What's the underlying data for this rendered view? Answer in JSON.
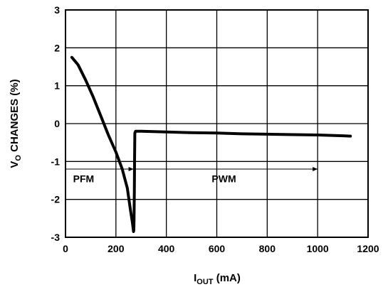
{
  "chart_data": {
    "type": "line",
    "xlabel": {
      "main": "I",
      "sub": "OUT",
      "rest": " (mA)"
    },
    "ylabel": {
      "main": "V",
      "sub": "O",
      "rest": " CHANGES (%)"
    },
    "xlim": [
      0,
      1200
    ],
    "ylim": [
      -3,
      3
    ],
    "x_ticks": [
      "0",
      "200",
      "400",
      "600",
      "800",
      "1000",
      "1200"
    ],
    "y_ticks": [
      "3",
      "2",
      "1",
      "0",
      "-1",
      "-2",
      "-3"
    ],
    "grid": true,
    "series": [
      {
        "x": [
          25,
          50,
          80,
          110,
          140,
          170,
          200,
          225,
          245,
          258,
          265,
          268,
          270,
          271,
          272,
          273,
          274,
          275,
          278,
          282,
          300,
          400,
          500,
          600,
          700,
          800,
          900,
          1000,
          1100,
          1130
        ],
        "y": [
          1.75,
          1.55,
          1.15,
          0.7,
          0.2,
          -0.3,
          -0.75,
          -1.2,
          -1.7,
          -2.3,
          -2.6,
          -2.75,
          -2.85,
          -2.8,
          -2.5,
          -1.8,
          -1.0,
          -0.25,
          -0.2,
          -0.2,
          -0.2,
          -0.22,
          -0.24,
          -0.25,
          -0.27,
          -0.28,
          -0.29,
          -0.3,
          -0.32,
          -0.33
        ]
      }
    ],
    "annotations": [
      {
        "text": "PFM",
        "x": 30,
        "y": -1.55
      },
      {
        "text": "PWM",
        "x": 580,
        "y": -1.55
      }
    ],
    "arrows": [
      {
        "from": [
          0,
          -1.2
        ],
        "to": [
          270,
          -1.2
        ]
      },
      {
        "from": [
          270,
          -1.2
        ],
        "to": [
          1000,
          -1.2
        ]
      }
    ]
  }
}
